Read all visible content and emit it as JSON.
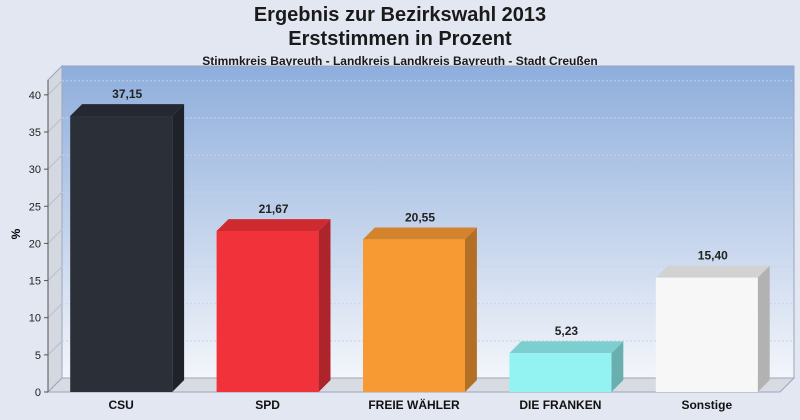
{
  "chart_data": {
    "type": "bar",
    "title": "Ergebnis zur Bezirkswahl 2013",
    "subtitle_line": "Erststimmen in Prozent",
    "subtitle": "Stimmkreis Bayreuth - Landkreis Landkreis Bayreuth - Stadt Creußen",
    "ylabel": "%",
    "xlabel": "",
    "ylim": [
      0,
      42
    ],
    "yticks": [
      0,
      5,
      10,
      15,
      20,
      25,
      30,
      35,
      40
    ],
    "grid": true,
    "categories": [
      "CSU",
      "SPD",
      "FREIE WÄHLER",
      "DIE FRANKEN",
      "Sonstige"
    ],
    "values": [
      37.15,
      21.67,
      20.55,
      5.23,
      15.4
    ],
    "value_labels": [
      "37,15",
      "21,67",
      "20,55",
      "5,23",
      "15,40"
    ],
    "colors": [
      "#2b2f38",
      "#f2323a",
      "#f79a33",
      "#93f3f3",
      "#f7f7f7"
    ]
  }
}
